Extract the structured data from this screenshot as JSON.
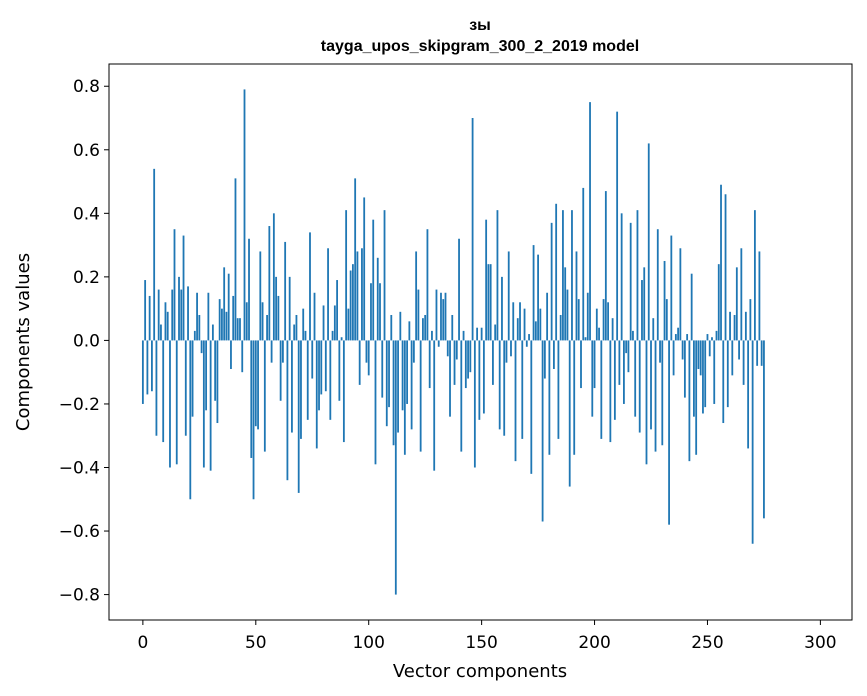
{
  "chart_data": {
    "type": "bar",
    "title_line1": "зы",
    "title_line2": "tayga_upos_skipgram_300_2_2019 model",
    "xlabel": "Vector components",
    "ylabel": "Components values",
    "xlim": [
      -15,
      314
    ],
    "ylim": [
      -0.88,
      0.87
    ],
    "xticks": [
      0,
      50,
      100,
      150,
      200,
      250,
      300
    ],
    "xtick_labels": [
      "0",
      "50",
      "100",
      "150",
      "200",
      "250",
      "300"
    ],
    "yticks": [
      0.8,
      0.6,
      0.4,
      0.2,
      0.0,
      -0.2,
      -0.4,
      -0.6,
      -0.8
    ],
    "ytick_labels": [
      "0.8",
      "0.6",
      "0.4",
      "0.2",
      "0.0",
      "−0.2",
      "−0.4",
      "−0.6",
      "−0.8"
    ],
    "bar_color": "#1f77b4",
    "values": [
      -0.2,
      0.19,
      -0.17,
      0.14,
      -0.16,
      0.54,
      -0.3,
      0.16,
      0.05,
      -0.32,
      0.12,
      0.09,
      -0.4,
      0.16,
      0.35,
      -0.39,
      0.2,
      0.16,
      0.33,
      -0.3,
      0.17,
      -0.5,
      -0.24,
      0.03,
      0.15,
      0.08,
      -0.04,
      -0.4,
      -0.22,
      0.15,
      -0.41,
      0.05,
      -0.19,
      -0.26,
      0.13,
      0.1,
      0.23,
      0.09,
      0.21,
      -0.09,
      0.14,
      0.51,
      0.07,
      0.07,
      -0.1,
      0.79,
      0.12,
      0.32,
      -0.37,
      -0.5,
      -0.27,
      -0.28,
      0.28,
      0.12,
      -0.35,
      0.08,
      0.36,
      -0.07,
      0.4,
      0.2,
      0.14,
      -0.19,
      -0.07,
      0.31,
      -0.44,
      0.2,
      -0.29,
      0.05,
      0.08,
      -0.48,
      -0.31,
      0.1,
      0.03,
      -0.25,
      0.34,
      -0.12,
      0.15,
      -0.34,
      -0.22,
      -0.17,
      0.11,
      -0.16,
      0.29,
      -0.25,
      0.03,
      0.11,
      0.19,
      -0.19,
      0.01,
      -0.32,
      0.41,
      0.1,
      0.22,
      0.24,
      0.51,
      0.28,
      -0.14,
      0.29,
      0.45,
      -0.07,
      -0.11,
      0.18,
      0.38,
      -0.39,
      0.26,
      0.18,
      -0.18,
      0.41,
      -0.27,
      -0.21,
      0.08,
      -0.33,
      -0.8,
      -0.29,
      0.09,
      -0.22,
      -0.36,
      -0.2,
      0.06,
      -0.28,
      -0.07,
      0.28,
      0.16,
      -0.35,
      0.07,
      0.08,
      0.35,
      -0.15,
      0.03,
      -0.41,
      0.16,
      -0.02,
      0.15,
      0.13,
      0.15,
      -0.05,
      -0.24,
      0.08,
      -0.14,
      -0.06,
      0.32,
      -0.35,
      0.03,
      -0.15,
      -0.12,
      -0.1,
      0.7,
      -0.4,
      0.04,
      -0.25,
      0.04,
      -0.23,
      0.38,
      0.24,
      0.24,
      -0.14,
      0.05,
      0.41,
      -0.28,
      0.2,
      -0.3,
      -0.07,
      0.28,
      -0.05,
      0.12,
      -0.38,
      0.07,
      0.12,
      -0.31,
      0.1,
      -0.02,
      0.02,
      -0.42,
      0.3,
      0.06,
      0.27,
      0.1,
      -0.57,
      -0.12,
      0.15,
      -0.36,
      0.37,
      -0.09,
      0.43,
      -0.31,
      0.08,
      0.41,
      0.23,
      0.16,
      -0.46,
      0.41,
      -0.36,
      0.28,
      0.13,
      -0.15,
      0.48,
      0.01,
      0.15,
      0.75,
      -0.24,
      -0.15,
      0.1,
      0.04,
      -0.31,
      0.13,
      0.47,
      0.12,
      -0.32,
      0.07,
      -0.25,
      0.72,
      -0.14,
      0.4,
      -0.2,
      -0.04,
      -0.1,
      0.37,
      0.03,
      -0.24,
      0.41,
      -0.29,
      0.19,
      0.23,
      -0.39,
      0.62,
      -0.28,
      0.07,
      -0.35,
      0.35,
      -0.07,
      -0.33,
      0.25,
      0.13,
      -0.58,
      0.33,
      -0.11,
      0.02,
      0.04,
      0.29,
      -0.06,
      -0.18,
      0.02,
      -0.38,
      0.21,
      -0.24,
      -0.36,
      -0.09,
      -0.11,
      -0.23,
      -0.21,
      0.02,
      -0.05,
      0.01,
      -0.2,
      0.03,
      0.24,
      0.49,
      -0.26,
      0.46,
      -0.21,
      0.09,
      -0.11,
      0.08,
      0.23,
      -0.06,
      0.29,
      -0.14,
      0.09,
      -0.34,
      0.13,
      -0.64,
      0.41,
      -0.08,
      0.28,
      -0.08,
      -0.56
    ]
  }
}
